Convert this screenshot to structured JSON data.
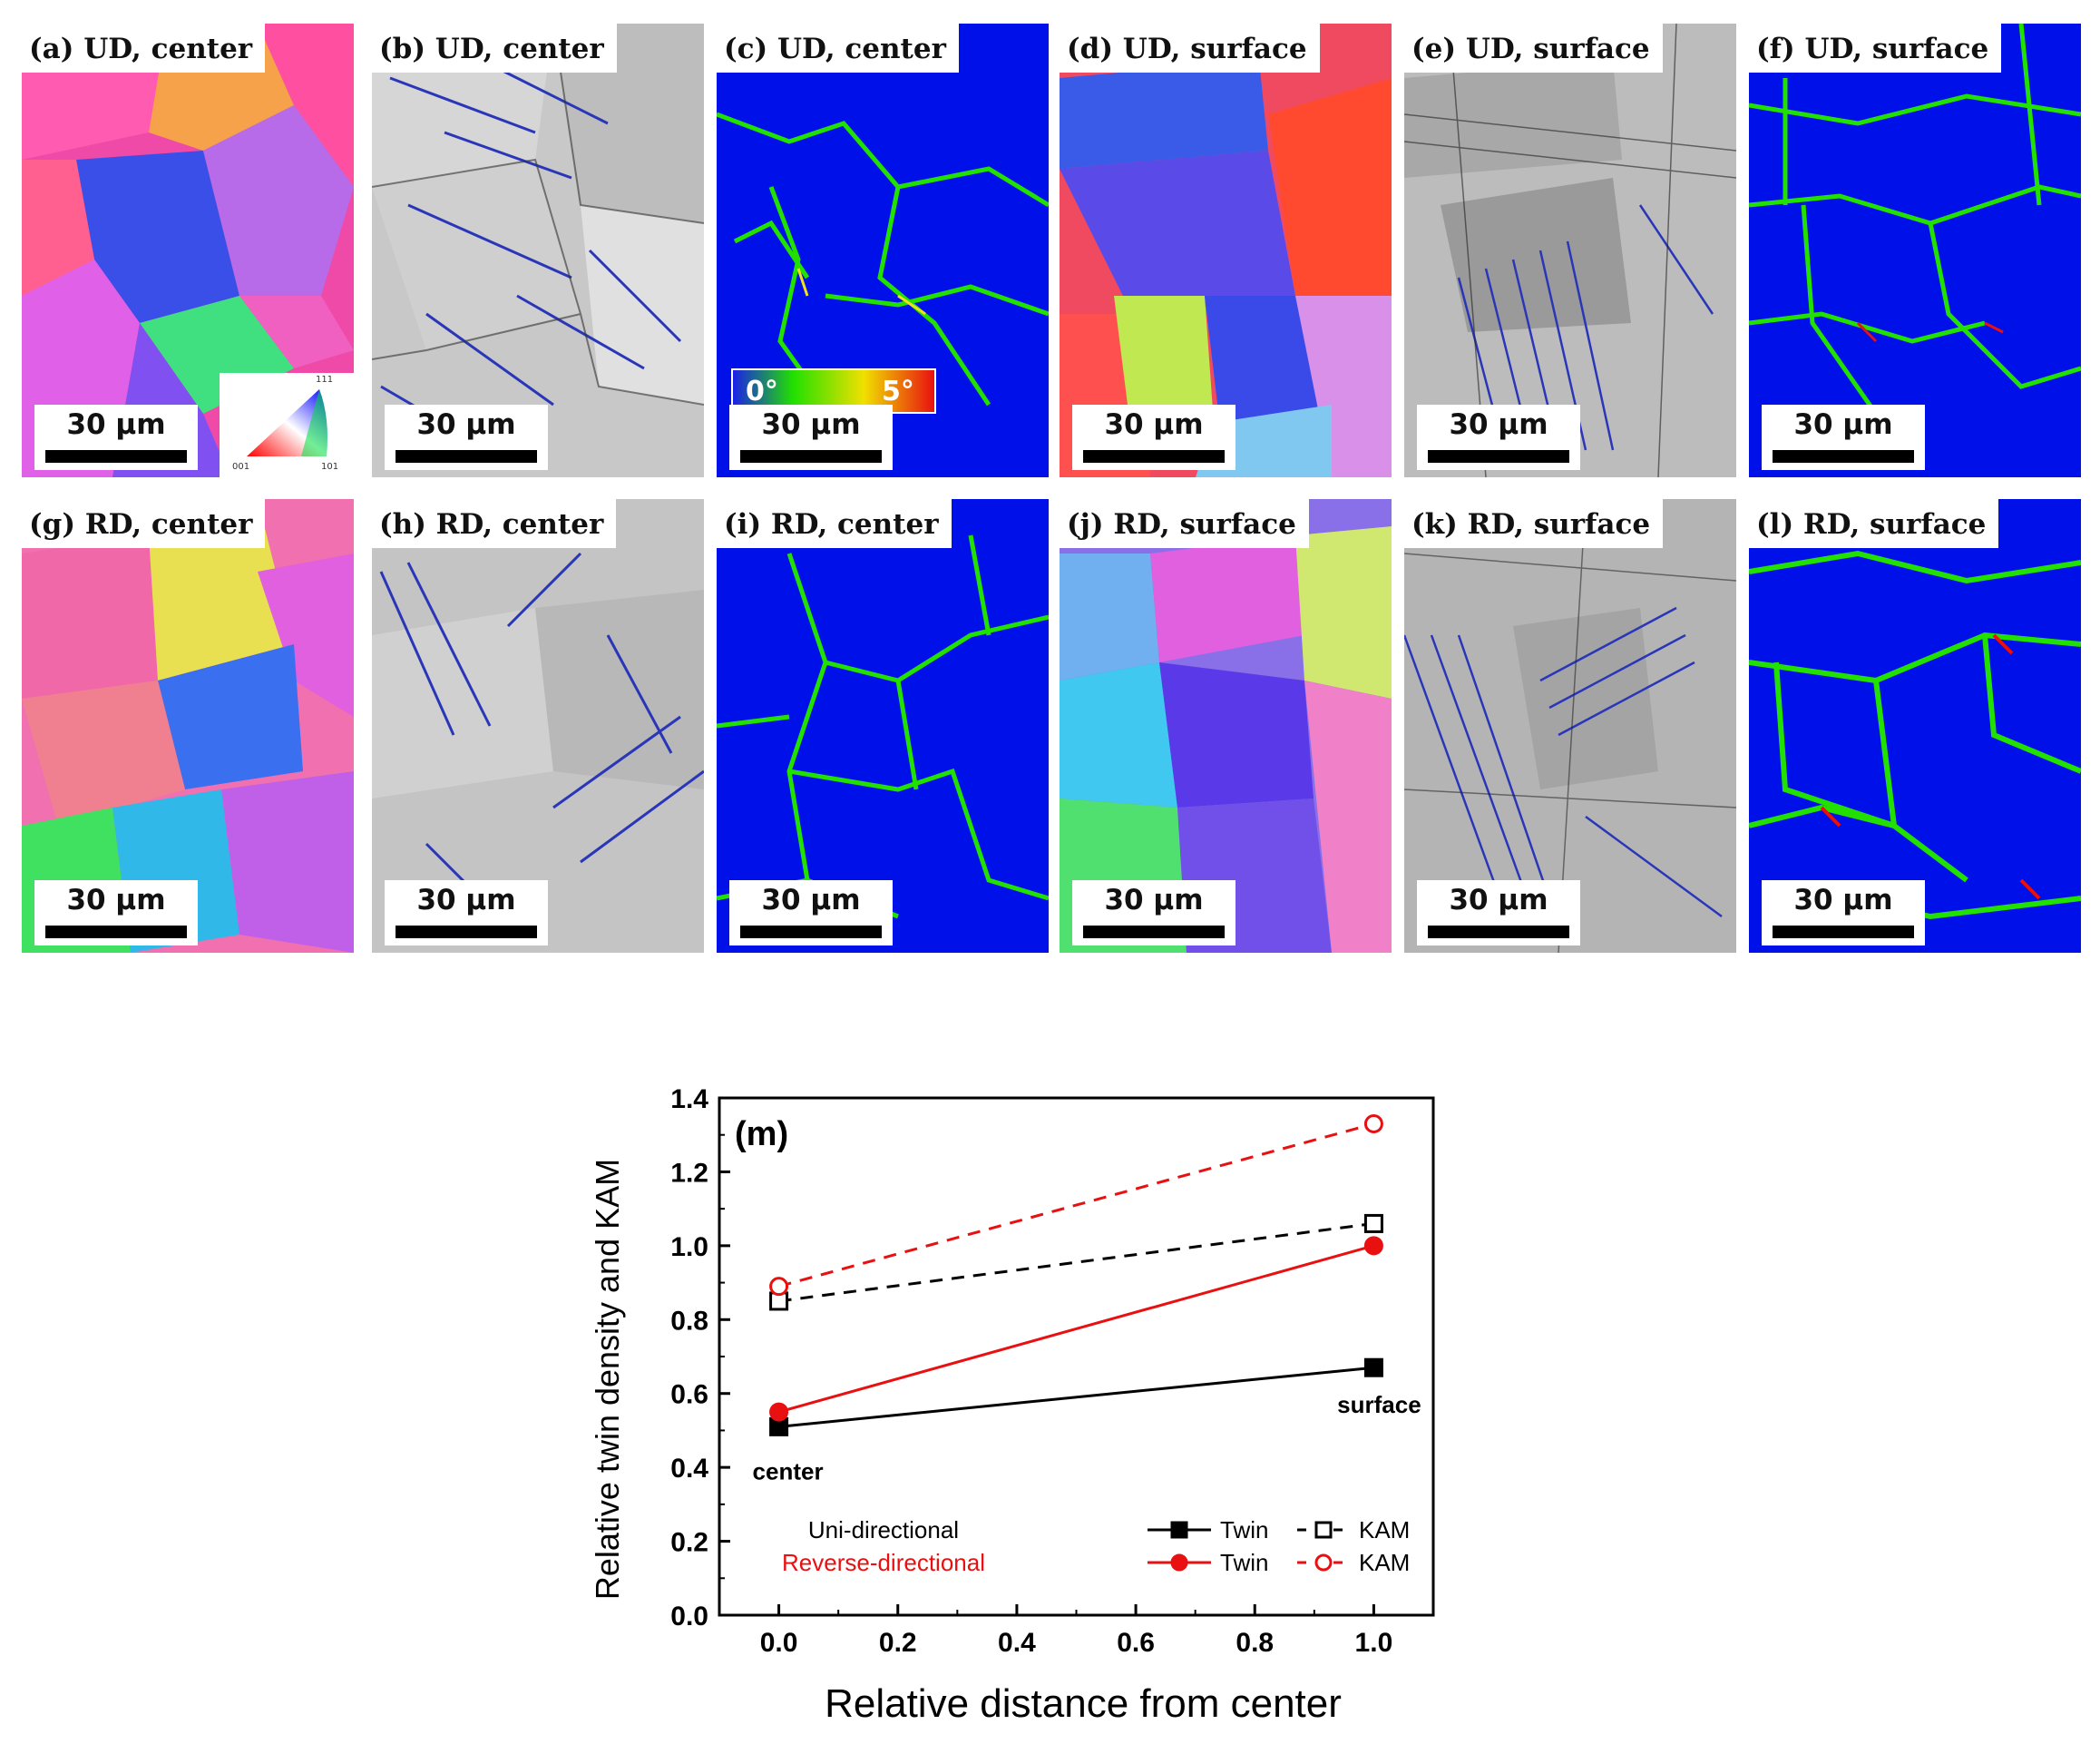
{
  "panels": [
    {
      "id": "a",
      "label": "(a) UD,  center",
      "type": "ipf",
      "scale": "30 μm"
    },
    {
      "id": "b",
      "label": "(b) UD,  center",
      "type": "iq",
      "scale": "30 μm"
    },
    {
      "id": "c",
      "label": "(c) UD,  center",
      "type": "kam",
      "scale": "30 μm"
    },
    {
      "id": "d",
      "label": "(d) UD,  surface",
      "type": "ipf",
      "scale": "30 μm"
    },
    {
      "id": "e",
      "label": "(e) UD,  surface",
      "type": "iq",
      "scale": "30 μm"
    },
    {
      "id": "f",
      "label": "(f) UD,  surface",
      "type": "kam",
      "scale": "30 μm"
    },
    {
      "id": "g",
      "label": "(g) RD,  center",
      "type": "ipf",
      "scale": "30 μm"
    },
    {
      "id": "h",
      "label": "(h) RD,  center",
      "type": "iq",
      "scale": "30 μm"
    },
    {
      "id": "i",
      "label": "(i) RD,  center",
      "type": "kam",
      "scale": "30 μm"
    },
    {
      "id": "j",
      "label": "(j) RD,  surface",
      "type": "ipf",
      "scale": "30 μm"
    },
    {
      "id": "k",
      "label": "(k) RD,  surface",
      "type": "iq",
      "scale": "30 μm"
    },
    {
      "id": "l",
      "label": "(l) RD,  surface",
      "type": "kam",
      "scale": "30 μm"
    }
  ],
  "ipf_key": {
    "top": "111",
    "left": "001",
    "right": "101"
  },
  "kam_key": {
    "min": "0°",
    "max": "5°"
  },
  "colors": {
    "kam_blue": "#0010e8",
    "kam_green": "#22e000",
    "red": "#e81010",
    "black": "#000000"
  },
  "chart_data": {
    "type": "line",
    "panel_label": "(m)",
    "xlabel": "Relative distance from center",
    "ylabel": "Relative twin density and KAM",
    "xlim": [
      -0.1,
      1.1
    ],
    "ylim": [
      0.0,
      1.4
    ],
    "xticks": [
      "0.0",
      "0.2",
      "0.4",
      "0.6",
      "0.8",
      "1.0"
    ],
    "yticks": [
      "0.0",
      "0.2",
      "0.4",
      "0.6",
      "0.8",
      "1.0",
      "1.2",
      "1.4"
    ],
    "annotations": [
      {
        "text": "center",
        "x": 0.0,
        "y": 0.51
      },
      {
        "text": "surface",
        "x": 1.0,
        "y": 0.67
      }
    ],
    "legend_groups": [
      {
        "name": "Uni-directional",
        "color": "#000000"
      },
      {
        "name": "Reverse-directional",
        "color": "#e81010"
      }
    ],
    "series": [
      {
        "name": "Twin",
        "group": "Uni-directional",
        "color": "#000000",
        "marker": "square-filled",
        "dash": false,
        "x": [
          0.0,
          1.0
        ],
        "y": [
          0.51,
          0.67
        ]
      },
      {
        "name": "KAM",
        "group": "Uni-directional",
        "color": "#000000",
        "marker": "square-open",
        "dash": true,
        "x": [
          0.0,
          1.0
        ],
        "y": [
          0.85,
          1.06
        ]
      },
      {
        "name": "Twin",
        "group": "Reverse-directional",
        "color": "#e81010",
        "marker": "circle-filled",
        "dash": false,
        "x": [
          0.0,
          1.0
        ],
        "y": [
          0.55,
          1.0
        ]
      },
      {
        "name": "KAM",
        "group": "Reverse-directional",
        "color": "#e81010",
        "marker": "circle-open",
        "dash": true,
        "x": [
          0.0,
          1.0
        ],
        "y": [
          0.89,
          1.33
        ]
      }
    ]
  }
}
